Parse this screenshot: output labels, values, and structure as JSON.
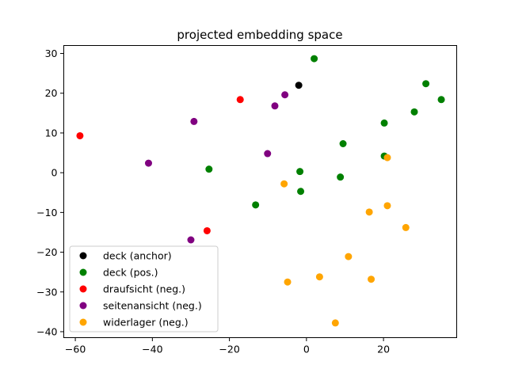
{
  "chart_data": {
    "type": "scatter",
    "title": "projected embedding space",
    "xlabel": "",
    "ylabel": "",
    "xlim": [
      -63,
      39
    ],
    "ylim": [
      -41.5,
      32
    ],
    "xticks": [
      -60,
      -40,
      -20,
      0,
      20
    ],
    "yticks": [
      -40,
      -30,
      -20,
      -10,
      0,
      10,
      20,
      30
    ],
    "xtick_labels": [
      "−60",
      "−40",
      "−20",
      "0",
      "20"
    ],
    "ytick_labels": [
      "−40",
      "−30",
      "−20",
      "−10",
      "0",
      "10",
      "20",
      "30"
    ],
    "grid": false,
    "legend_position": "lower-left",
    "series": [
      {
        "name": "deck (anchor)",
        "color": "#000000",
        "points": [
          [
            -2,
            22
          ]
        ]
      },
      {
        "name": "deck (pos.)",
        "color": "#008000",
        "points": [
          [
            2,
            28.7
          ],
          [
            31,
            22.4
          ],
          [
            35,
            18.4
          ],
          [
            28,
            15.3
          ],
          [
            20.2,
            12.5
          ],
          [
            9.5,
            7.3
          ],
          [
            20.2,
            4.2
          ],
          [
            -25.3,
            0.9
          ],
          [
            -1.7,
            0.3
          ],
          [
            8.8,
            -1.1
          ],
          [
            -1.5,
            -4.7
          ],
          [
            -13.2,
            -8.1
          ]
        ]
      },
      {
        "name": "draufsicht (neg.)",
        "color": "#ff0000",
        "points": [
          [
            -17.2,
            18.4
          ],
          [
            -58.8,
            9.3
          ],
          [
            -25.8,
            -14.6
          ]
        ]
      },
      {
        "name": "seitenansicht (neg.)",
        "color": "#800080",
        "points": [
          [
            -5.6,
            19.6
          ],
          [
            -8.2,
            16.8
          ],
          [
            -29.2,
            12.9
          ],
          [
            -10.1,
            4.8
          ],
          [
            -41,
            2.4
          ],
          [
            -30,
            -16.9
          ]
        ]
      },
      {
        "name": "widerlager (neg.)",
        "color": "#ffa500",
        "points": [
          [
            21,
            3.8
          ],
          [
            -5.8,
            -2.8
          ],
          [
            21,
            -8.3
          ],
          [
            16.3,
            -9.9
          ],
          [
            25.8,
            -13.8
          ],
          [
            10.9,
            -21.1
          ],
          [
            3.4,
            -26.2
          ],
          [
            16.8,
            -26.8
          ],
          [
            -4.9,
            -27.5
          ],
          [
            7.5,
            -37.8
          ]
        ]
      }
    ]
  }
}
